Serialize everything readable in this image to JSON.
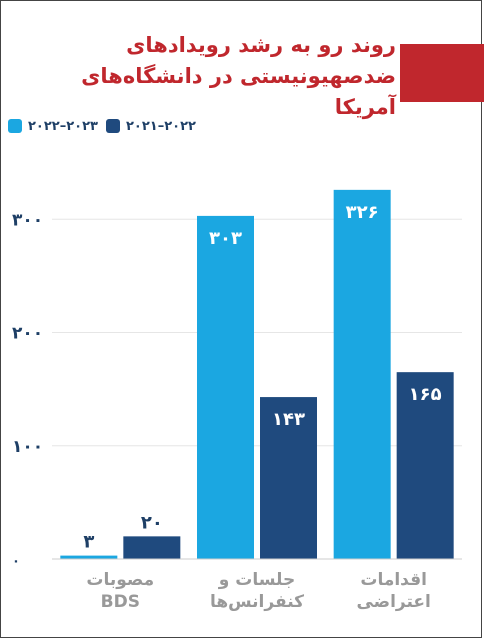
{
  "title": "روند رو به رشد رویدادهای ضدصهیونیستی در دانشگاه‌های آمریکا",
  "colors": {
    "accent": "#c0272d",
    "series_2022_2023": "#1ba7e1",
    "series_2021_2022": "#1f4a7e",
    "axis_text": "#1e3f66",
    "category_text": "#999999"
  },
  "chart_data": {
    "type": "bar",
    "categories": [
      "مصوبات BDS",
      "جلسات و کنفرانس‌ها",
      "اقدامات اعتراضی"
    ],
    "category_lines": [
      [
        "مصوبات",
        "BDS"
      ],
      [
        "جلسات و",
        "کنفرانس‌ها"
      ],
      [
        "اقدامات",
        "اعتراضی"
      ]
    ],
    "series": [
      {
        "name": "۲۰۲۲–۲۰۲۳",
        "color": "#1ba7e1",
        "values": [
          3,
          303,
          326
        ],
        "labels": [
          "۳",
          "۳۰۳",
          "۳۲۶"
        ]
      },
      {
        "name": "۲۰۲۱–۲۰۲۲",
        "color": "#1f4a7e",
        "values": [
          20,
          143,
          165
        ],
        "labels": [
          "۲۰",
          "۱۴۳",
          "۱۶۵"
        ]
      }
    ],
    "ylim": [
      0,
      340
    ],
    "yticks": [
      0,
      100,
      200,
      300
    ],
    "ytick_labels": [
      "۰",
      "۱۰۰",
      "۲۰۰",
      "۳۰۰"
    ],
    "grid": true,
    "legend_position": "top-left"
  }
}
